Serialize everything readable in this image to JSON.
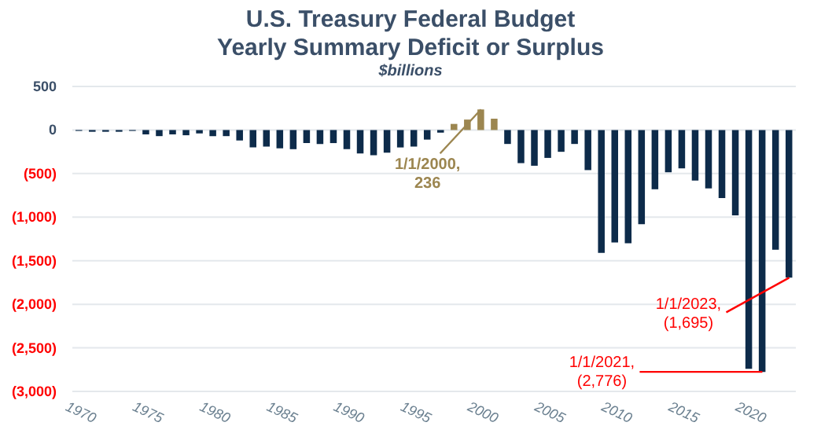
{
  "chart_data": {
    "type": "bar",
    "title": "U.S. Treasury Federal Budget\nYearly Summary Deficit or Surplus",
    "subtitle": "$billions",
    "x": [
      1970,
      1971,
      1972,
      1973,
      1974,
      1975,
      1976,
      1977,
      1978,
      1979,
      1980,
      1981,
      1982,
      1983,
      1984,
      1985,
      1986,
      1987,
      1988,
      1989,
      1990,
      1991,
      1992,
      1993,
      1994,
      1995,
      1996,
      1997,
      1998,
      1999,
      2000,
      2001,
      2002,
      2003,
      2004,
      2005,
      2006,
      2007,
      2008,
      2009,
      2010,
      2011,
      2012,
      2013,
      2014,
      2015,
      2016,
      2017,
      2018,
      2019,
      2020,
      2021,
      2022,
      2023
    ],
    "values": [
      -10,
      -20,
      -20,
      -20,
      -10,
      -50,
      -70,
      -50,
      -60,
      -40,
      -70,
      -70,
      -120,
      -200,
      -190,
      -210,
      -220,
      -150,
      -160,
      -150,
      -220,
      -270,
      -290,
      -260,
      -200,
      -190,
      -110,
      -30,
      70,
      120,
      236,
      130,
      -160,
      -380,
      -410,
      -320,
      -250,
      -160,
      -460,
      -1410,
      -1290,
      -1300,
      -1080,
      -680,
      -485,
      -440,
      -580,
      -670,
      -780,
      -980,
      -2740,
      -2776,
      -1375,
      -1695
    ],
    "colors": [
      "#0d2b4a",
      "#0d2b4a",
      "#0d2b4a",
      "#0d2b4a",
      "#0d2b4a",
      "#0d2b4a",
      "#0d2b4a",
      "#0d2b4a",
      "#0d2b4a",
      "#0d2b4a",
      "#0d2b4a",
      "#0d2b4a",
      "#0d2b4a",
      "#0d2b4a",
      "#0d2b4a",
      "#0d2b4a",
      "#0d2b4a",
      "#0d2b4a",
      "#0d2b4a",
      "#0d2b4a",
      "#0d2b4a",
      "#0d2b4a",
      "#0d2b4a",
      "#0d2b4a",
      "#0d2b4a",
      "#0d2b4a",
      "#0d2b4a",
      "#0d2b4a",
      "#9c8650",
      "#9c8650",
      "#9c8650",
      "#9c8650",
      "#0d2b4a",
      "#0d2b4a",
      "#0d2b4a",
      "#0d2b4a",
      "#0d2b4a",
      "#0d2b4a",
      "#0d2b4a",
      "#0d2b4a",
      "#0d2b4a",
      "#0d2b4a",
      "#0d2b4a",
      "#0d2b4a",
      "#0d2b4a",
      "#0d2b4a",
      "#0d2b4a",
      "#0d2b4a",
      "#0d2b4a",
      "#0d2b4a",
      "#0d2b4a",
      "#0d2b4a",
      "#0d2b4a",
      "#0d2b4a"
    ],
    "xlim": [
      1969.5,
      2023.5
    ],
    "xticks": [
      1970,
      1975,
      1980,
      1985,
      1990,
      1995,
      2000,
      2005,
      2010,
      2015,
      2020
    ],
    "ylim": [
      -3000,
      500
    ],
    "yticks": [
      500,
      0,
      {
        "value": -500,
        "label": "(500)"
      },
      {
        "value": -1000,
        "label": "(1,000)"
      },
      {
        "value": -1500,
        "label": "(1,500)"
      },
      {
        "value": -2000,
        "label": "(2,000)"
      },
      {
        "value": -2500,
        "label": "(2,500)"
      },
      {
        "value": -3000,
        "label": "(3,000)"
      }
    ],
    "grid": "y",
    "legend": false,
    "annotations": [
      {
        "text": "1/1/2000,\n236",
        "x": 2000,
        "y": 236
      },
      {
        "text": "1/1/2023,\n(1,695)",
        "x": 2023,
        "y": -1695
      },
      {
        "text": "1/1/2021,\n(2,776)",
        "x": 2021,
        "y": -2776
      }
    ]
  }
}
